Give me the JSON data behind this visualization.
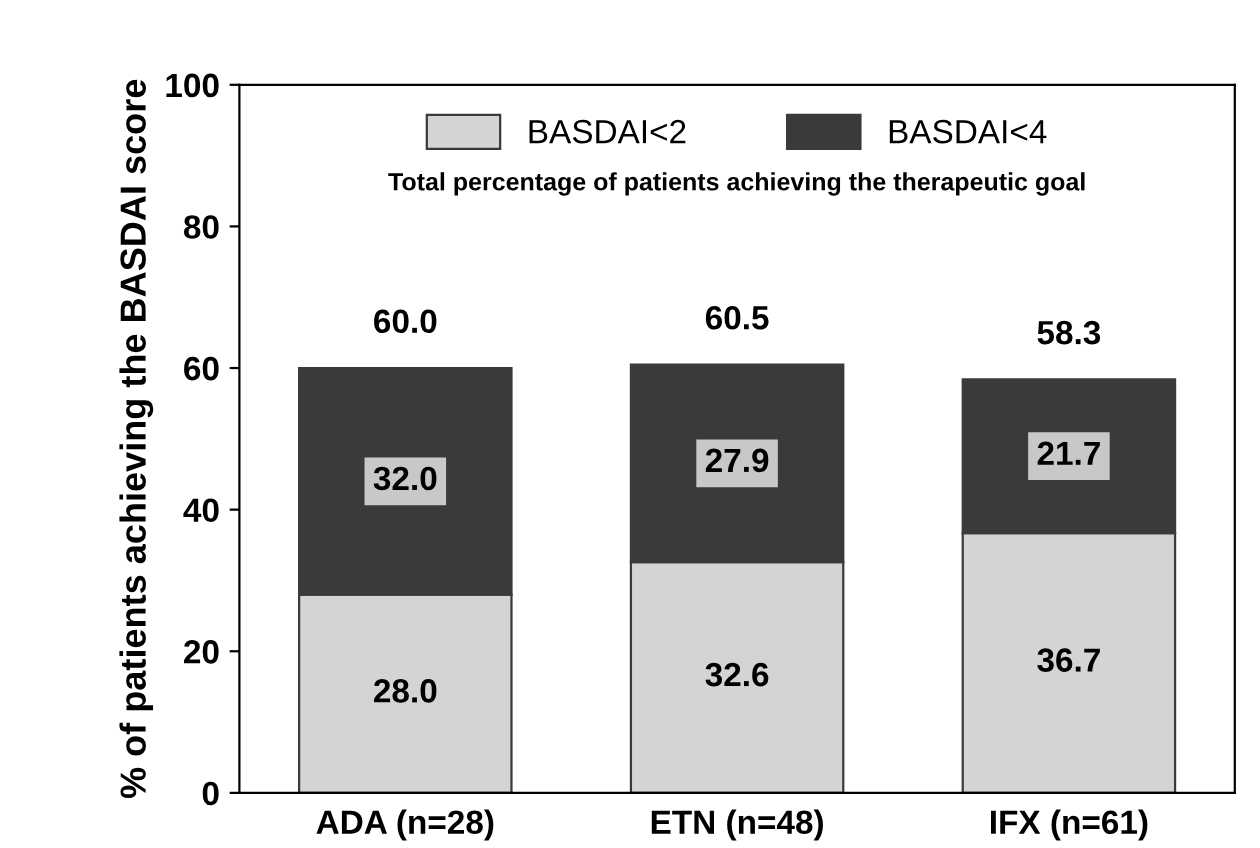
{
  "chart_data": {
    "type": "bar",
    "ylabel": "% of patients achieving the BASDAI score",
    "categories": [
      "ADA (n=28)",
      "ETN (n=48)",
      "IFX (n=61)"
    ],
    "stacked": true,
    "series": [
      {
        "name": "BASDAI<2",
        "color": "#d4d4d4",
        "values": [
          28.0,
          32.6,
          36.7
        ],
        "value_labels": [
          "28.0",
          "32.6",
          "36.7"
        ]
      },
      {
        "name": "BASDAI<4",
        "color": "#3a3a3a",
        "values": [
          32.0,
          27.9,
          21.7
        ],
        "value_labels": [
          "32.0",
          "27.9",
          "21.7"
        ]
      }
    ],
    "totals": [
      "60.0",
      "60.5",
      "58.3"
    ],
    "annotations": [
      "Total percentage of patients achieving the therapeutic goal"
    ],
    "ylim": [
      0,
      100
    ],
    "yticks": [
      0,
      20,
      40,
      60,
      80,
      100
    ],
    "grid": false,
    "legend": "top"
  }
}
